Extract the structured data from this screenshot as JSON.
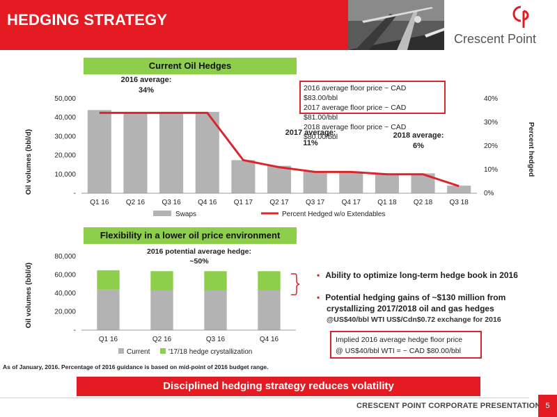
{
  "header": {
    "title": "HEDGING STRATEGY",
    "logo_text": "Crescent Point"
  },
  "section1": {
    "title": "Current Oil Hedges"
  },
  "section2": {
    "title": "Flexibility in a lower oil price environment"
  },
  "annotations": {
    "avg2016_label": "2016 average:",
    "avg2016_value": "34%",
    "avg2017_label": "2017 average:",
    "avg2017_value": "11%",
    "avg2018_label": "2018 average:",
    "avg2018_value": "6%",
    "potential_label": "2016 potential average hedge:",
    "potential_value": "~50%"
  },
  "floor_box": {
    "lines": [
      "2016 average floor price ~ CAD $83.00/bbl",
      "2017 average floor price ~ CAD $81.00/bbl",
      "2018 average floor price ~ CAD $80.00/bbl"
    ]
  },
  "bullets": {
    "b1": "Ability to optimize long-term hedge book in 2016",
    "b2_line1": "Potential hedging gains of ~$130 million from",
    "b2_line2": "crystallizing 2017/2018 oil and gas hedges",
    "sub": "@US$40/bbl WTI US$/Cdn$0.72 exchange for 2016"
  },
  "implied_box": {
    "line1": "Implied 2016 average hedge floor price",
    "line2": "@ US$40/bbl WTI = ~ CAD $80.00/bbl"
  },
  "footnote": "As of January, 2016. Percentage of 2016 guidance is based on mid-point of 2016 budget range.",
  "banner": "Disciplined hedging strategy reduces volatility",
  "footer": {
    "text": "CRESCENT POINT CORPORATE PRESENTATION",
    "page": "5"
  },
  "colors": {
    "red": "#e41b23",
    "green": "#8dcf4b",
    "gray": "#b3b3b3",
    "line": "#d9262e"
  },
  "chart_data": [
    {
      "type": "bar",
      "categories": [
        "Q1 16",
        "Q2 16",
        "Q3 16",
        "Q4 16",
        "Q1 17",
        "Q2 17",
        "Q3 17",
        "Q4 17",
        "Q1 18",
        "Q2 18",
        "Q3 18"
      ],
      "series": [
        {
          "name": "Swaps",
          "type": "bar",
          "values": [
            44000,
            42500,
            42500,
            43000,
            17500,
            14500,
            11500,
            11500,
            10500,
            10500,
            4000
          ]
        },
        {
          "name": "Percent Hedged w/o Extendables",
          "type": "line",
          "axis": "right",
          "values": [
            34,
            34,
            34,
            34,
            14,
            11,
            9,
            9,
            8,
            8,
            3
          ]
        }
      ],
      "ylabel": "Oil volumes (bbl/d)",
      "y2label": "Percent hedged",
      "ylim": [
        0,
        50000
      ],
      "y2lim": [
        0,
        40
      ],
      "yticks": [
        "-",
        "10,000",
        "20,000",
        "30,000",
        "40,000",
        "50,000"
      ],
      "y2ticks": [
        "0%",
        "10%",
        "20%",
        "30%",
        "40%"
      ],
      "legend": "bottom"
    },
    {
      "type": "bar",
      "stacked": true,
      "categories": [
        "Q1 16",
        "Q2 16",
        "Q3 16",
        "Q4 16"
      ],
      "series": [
        {
          "name": "Current",
          "values": [
            44000,
            43000,
            43000,
            43000
          ]
        },
        {
          "name": "'17/18 hedge crystallization",
          "values": [
            21000,
            21000,
            21000,
            21000
          ]
        }
      ],
      "ylabel": "Oil volumes (bbl/d)",
      "ylim": [
        0,
        80000
      ],
      "yticks": [
        "-",
        "20,000",
        "40,000",
        "60,000",
        "80,000"
      ],
      "legend": "bottom"
    }
  ]
}
